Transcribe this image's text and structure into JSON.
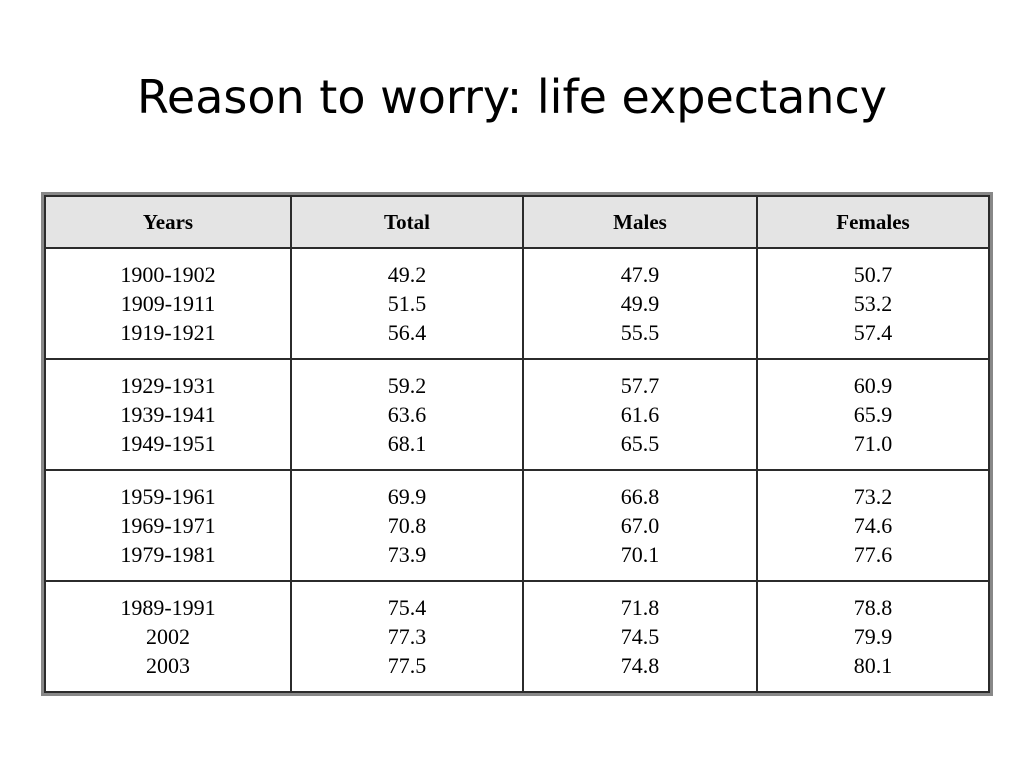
{
  "slide": {
    "title": "Reason to worry: life expectancy"
  },
  "table": {
    "headers": [
      "Years",
      "Total",
      "Males",
      "Females"
    ],
    "groups": [
      {
        "rows": [
          {
            "years": "1900-1902",
            "total": "49.2",
            "males": "47.9",
            "females": "50.7"
          },
          {
            "years": "1909-1911",
            "total": "51.5",
            "males": "49.9",
            "females": "53.2"
          },
          {
            "years": "1919-1921",
            "total": "56.4",
            "males": "55.5",
            "females": "57.4"
          }
        ]
      },
      {
        "rows": [
          {
            "years": "1929-1931",
            "total": "59.2",
            "males": "57.7",
            "females": "60.9"
          },
          {
            "years": "1939-1941",
            "total": "63.6",
            "males": "61.6",
            "females": "65.9"
          },
          {
            "years": "1949-1951",
            "total": "68.1",
            "males": "65.5",
            "females": "71.0"
          }
        ]
      },
      {
        "rows": [
          {
            "years": "1959-1961",
            "total": "69.9",
            "males": "66.8",
            "females": "73.2"
          },
          {
            "years": "1969-1971",
            "total": "70.8",
            "males": "67.0",
            "females": "74.6"
          },
          {
            "years": "1979-1981",
            "total": "73.9",
            "males": "70.1",
            "females": "77.6"
          }
        ]
      },
      {
        "rows": [
          {
            "years": "1989-1991",
            "total": "75.4",
            "males": "71.8",
            "females": "78.8"
          },
          {
            "years": "2002",
            "total": "77.3",
            "males": "74.5",
            "females": "79.9"
          },
          {
            "years": "2003",
            "total": "77.5",
            "males": "74.8",
            "females": "80.1"
          }
        ]
      }
    ]
  }
}
